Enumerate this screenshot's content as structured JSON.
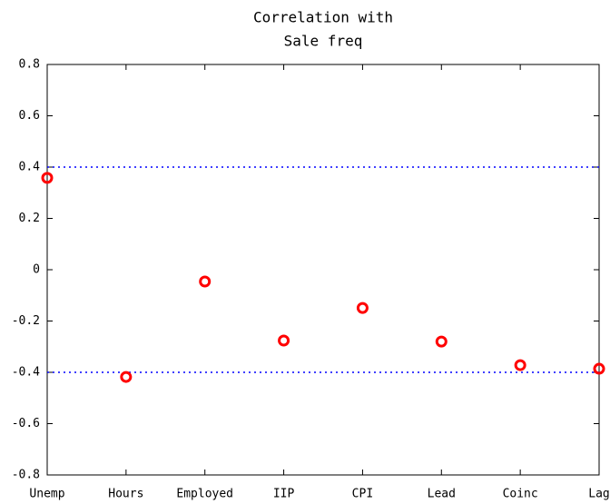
{
  "chart_data": {
    "type": "scatter",
    "title": [
      "Correlation with",
      "Sale freq"
    ],
    "categories": [
      "Unemp",
      "Hours",
      "Employed",
      "IIP",
      "CPI",
      "Lead",
      "Coinc",
      "Lag"
    ],
    "values": [
      0.358,
      -0.418,
      -0.046,
      -0.276,
      -0.149,
      -0.28,
      -0.372,
      -0.386
    ],
    "color": "#ff0000",
    "ylim": [
      -0.8,
      0.8
    ],
    "yticks": [
      -0.8,
      -0.6,
      -0.4,
      -0.2,
      0,
      0.2,
      0.4,
      0.6,
      0.8
    ],
    "hlines": [
      0.4,
      -0.4
    ],
    "hline_color": "#0000ff"
  }
}
